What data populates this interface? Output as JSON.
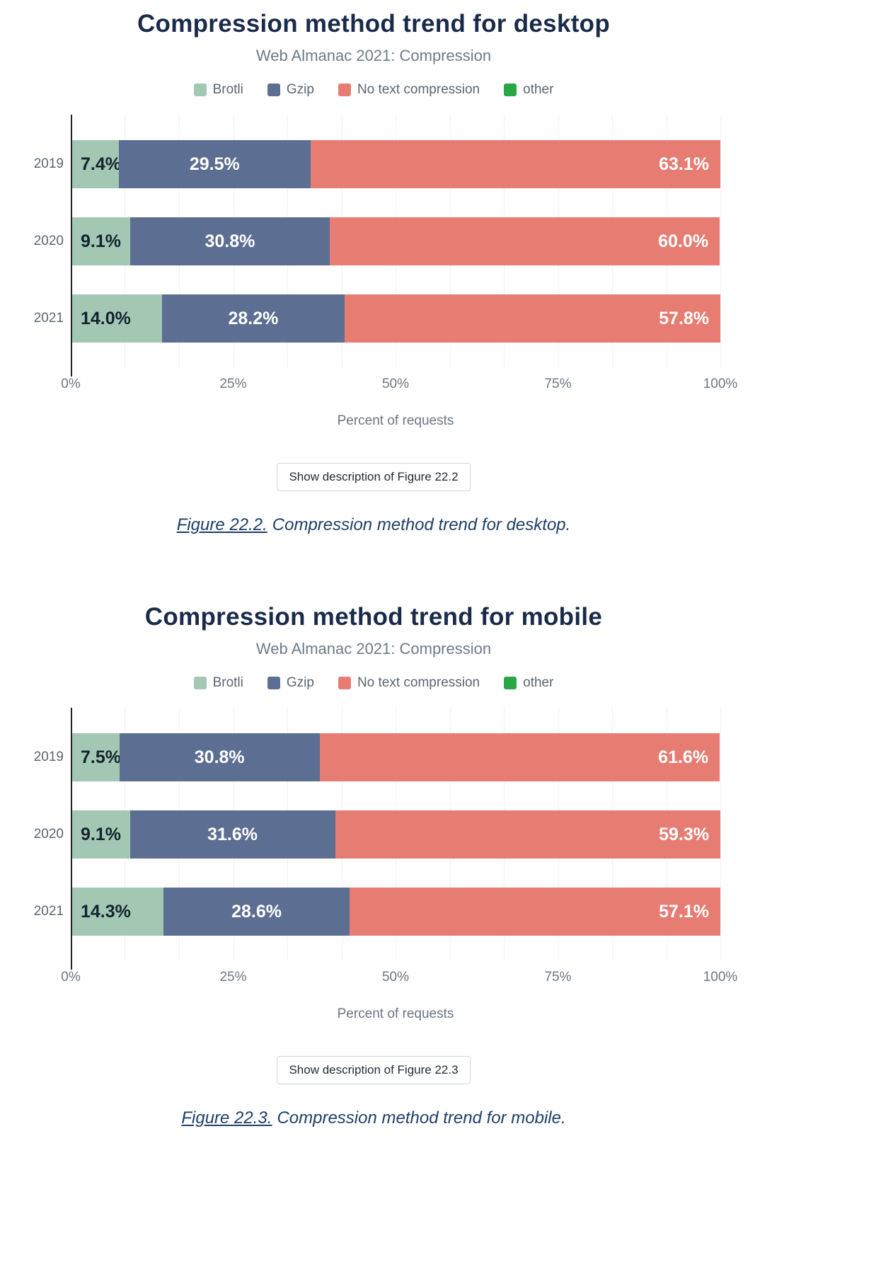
{
  "figures": [
    {
      "button_label": "Show description of Figure 22.2",
      "caption_link": "Figure 22.2.",
      "caption_text": "Compression method trend for desktop."
    },
    {
      "button_label": "Show description of Figure 22.3",
      "caption_link": "Figure 22.3.",
      "caption_text": "Compression method trend for mobile."
    }
  ],
  "chart_data": [
    {
      "type": "bar",
      "stacked": true,
      "orientation": "horizontal",
      "title": "Compression method trend for desktop",
      "subtitle": "Web Almanac 2021: Compression",
      "categories": [
        "2019",
        "2020",
        "2021"
      ],
      "series": [
        {
          "name": "Brotli",
          "color": "#a2c8b4",
          "label_color": "#15212e",
          "label_align": "start",
          "values": [
            7.4,
            9.1,
            14.0
          ]
        },
        {
          "name": "Gzip",
          "color": "#5c6e91",
          "label_color": "#ffffff",
          "label_align": "center",
          "values": [
            29.5,
            30.8,
            28.2
          ]
        },
        {
          "name": "No text compression",
          "color": "#e77c73",
          "label_color": "#ffffff",
          "label_align": "end",
          "values": [
            63.1,
            60.0,
            57.8
          ]
        },
        {
          "name": "other",
          "color": "#28a745",
          "label_color": "#ffffff",
          "label_align": "center",
          "values": [
            0,
            0,
            0
          ]
        }
      ],
      "xlabel": "Percent of requests",
      "x_ticks": [
        "0%",
        "25%",
        "50%",
        "75%",
        "100%"
      ],
      "xlim": [
        0,
        100
      ],
      "legend_position": "top",
      "grid": true,
      "grid_divisions": 12
    },
    {
      "type": "bar",
      "stacked": true,
      "orientation": "horizontal",
      "title": "Compression method trend for mobile",
      "subtitle": "Web Almanac 2021: Compression",
      "categories": [
        "2019",
        "2020",
        "2021"
      ],
      "series": [
        {
          "name": "Brotli",
          "color": "#a2c8b4",
          "label_color": "#15212e",
          "label_align": "start",
          "values": [
            7.5,
            9.1,
            14.3
          ]
        },
        {
          "name": "Gzip",
          "color": "#5c6e91",
          "label_color": "#ffffff",
          "label_align": "center",
          "values": [
            30.8,
            31.6,
            28.6
          ]
        },
        {
          "name": "No text compression",
          "color": "#e77c73",
          "label_color": "#ffffff",
          "label_align": "end",
          "values": [
            61.6,
            59.3,
            57.1
          ]
        },
        {
          "name": "other",
          "color": "#28a745",
          "label_color": "#ffffff",
          "label_align": "center",
          "values": [
            0,
            0,
            0
          ]
        }
      ],
      "xlabel": "Percent of requests",
      "x_ticks": [
        "0%",
        "25%",
        "50%",
        "75%",
        "100%"
      ],
      "xlim": [
        0,
        100
      ],
      "legend_position": "top",
      "grid": true,
      "grid_divisions": 12
    }
  ]
}
